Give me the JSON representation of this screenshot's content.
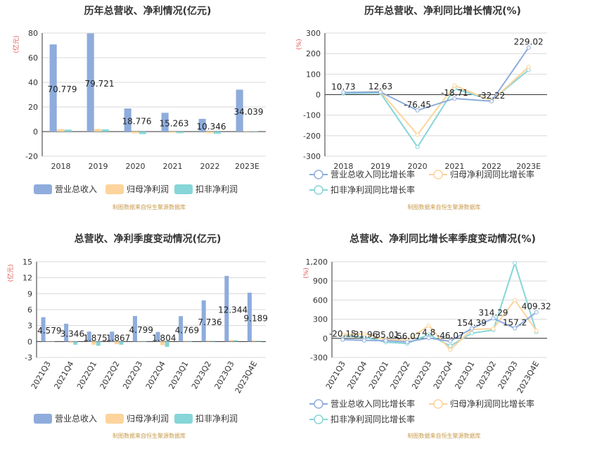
{
  "colors": {
    "revenue": "#8eacdc",
    "profit": "#fdd49b",
    "deducted": "#86d5d8",
    "source": "#c79a4a",
    "unit": "#e05050"
  },
  "chart_data": [
    {
      "type": "bar",
      "title": "历年总营收、净利情况(亿元)",
      "ylabel": "亿元",
      "ylim": [
        -20,
        80
      ],
      "yticks": [
        -20,
        0,
        20,
        40,
        60,
        80
      ],
      "categories": [
        "2018",
        "2019",
        "2020",
        "2021",
        "2022",
        "2023E"
      ],
      "series": [
        {
          "name": "营业总收入",
          "values": [
            70.779,
            79.721,
            18.776,
            15.263,
            10.346,
            34.039
          ]
        },
        {
          "name": "归母净利润",
          "values": [
            2.0,
            2.2,
            -1.3,
            -0.9,
            -1.3,
            0.5
          ]
        },
        {
          "name": "扣非净利润",
          "values": [
            1.6,
            1.8,
            -2.0,
            -1.3,
            -1.8,
            0.4
          ]
        }
      ],
      "labels": [
        "70.779",
        "79.721",
        "18.776",
        "15.263",
        "10.346",
        "34.039"
      ],
      "legend": "bottom",
      "source": "制图数据来自恒生聚源数据库"
    },
    {
      "type": "line",
      "title": "历年总营收、净利同比增长情况(%)",
      "ylabel": "%",
      "ylim": [
        -300,
        300
      ],
      "yticks": [
        -300,
        -200,
        -100,
        0,
        100,
        200,
        300
      ],
      "categories": [
        "2018",
        "2019",
        "2020",
        "2021",
        "2022",
        "2023E"
      ],
      "series": [
        {
          "name": "营业总收入同比增长率",
          "values": [
            10.73,
            12.63,
            -76.45,
            -18.71,
            -32.22,
            229.02
          ]
        },
        {
          "name": "归母净利润同比增长率",
          "values": [
            10,
            15,
            -195,
            45,
            -30,
            135
          ]
        },
        {
          "name": "扣非净利润同比增长率",
          "values": [
            5,
            8,
            -255,
            30,
            -28,
            120
          ]
        }
      ],
      "labels": [
        "10.73",
        "12.63",
        "-76.45",
        "-18.71",
        "-32.22",
        "229.02"
      ],
      "legend": "bottom",
      "source": "制图数据来自恒生聚源数据库"
    },
    {
      "type": "bar",
      "title": "总营收、净利季度变动情况(亿元)",
      "ylabel": "亿元",
      "ylim": [
        -3,
        15
      ],
      "yticks": [
        -3,
        0,
        3,
        6,
        9,
        12,
        15
      ],
      "categories": [
        "2021Q3",
        "2021Q4",
        "2022Q1",
        "2022Q2",
        "2022Q3",
        "2022Q4",
        "2023Q1",
        "2023Q2",
        "2023Q3",
        "2023Q4E"
      ],
      "series": [
        {
          "name": "营业总收入",
          "values": [
            4.579,
            3.346,
            1.875,
            1.867,
            4.799,
            1.804,
            4.769,
            7.736,
            12.344,
            9.189
          ]
        },
        {
          "name": "归母净利润",
          "values": [
            0.1,
            -0.2,
            -0.6,
            -0.5,
            0.1,
            -0.7,
            0.1,
            0.2,
            0.3,
            0.2
          ]
        },
        {
          "name": "扣非净利润",
          "values": [
            0.05,
            -0.6,
            -0.8,
            -0.6,
            0.05,
            -1.0,
            0.05,
            0.15,
            0.25,
            0.15
          ]
        }
      ],
      "labels": [
        "4.579",
        "3.346",
        "1.875",
        "1.867",
        "4.799",
        "1.804",
        "4.769",
        "7.736",
        "12.344",
        "9.189"
      ],
      "legend": "bottom",
      "source": "制图数据来自恒生聚源数据库"
    },
    {
      "type": "line",
      "title": "总营收、净利同比增长率季度变动情况(%)",
      "ylabel": "%",
      "ylim": [
        -300,
        1200
      ],
      "yticks": [
        -300,
        0,
        300,
        600,
        900,
        1200
      ],
      "ytick_labels": [
        "-300",
        "0",
        "300",
        "600",
        "900",
        "1,200"
      ],
      "categories": [
        "2021Q3",
        "2021Q4",
        "2022Q1",
        "2022Q2",
        "2022Q3",
        "2022Q4",
        "2023Q1",
        "2023Q2",
        "2023Q3",
        "2023Q4E"
      ],
      "series": [
        {
          "name": "营业总收入同比增长率",
          "values": [
            -20.15,
            -31.96,
            -35.01,
            -56.07,
            4.8,
            -46.07,
            154.39,
            314.29,
            157.2,
            409.32
          ]
        },
        {
          "name": "归母净利润同比增长率",
          "values": [
            60,
            70,
            -20,
            -30,
            200,
            -180,
            140,
            150,
            600,
            120
          ]
        },
        {
          "name": "扣非净利润同比增长率",
          "values": [
            40,
            20,
            -60,
            -80,
            60,
            -120,
            80,
            130,
            1180,
            100
          ]
        }
      ],
      "labels": [
        "-20.15",
        "-31.96",
        "-35.01",
        "-56.07",
        "4.8",
        "-46.07",
        "154.39",
        "314.29",
        "157.2",
        "409.32"
      ],
      "legend": "bottom",
      "source": "制图数据来自恒生聚源数据库"
    }
  ]
}
